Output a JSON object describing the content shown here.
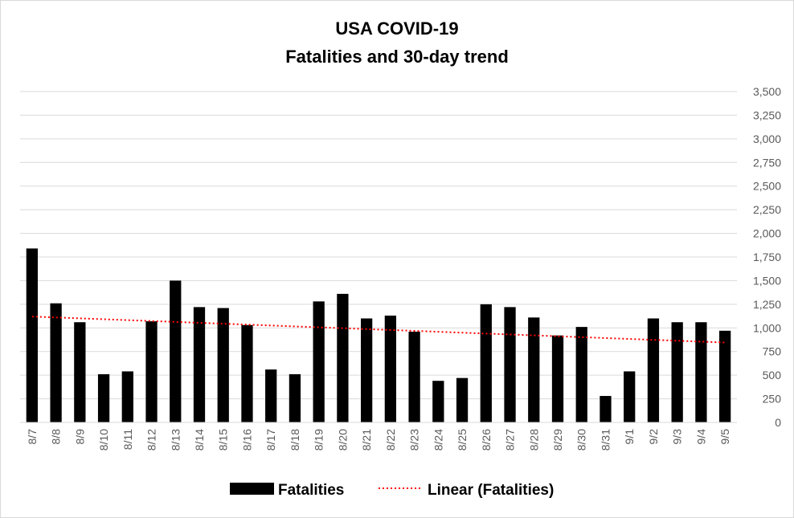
{
  "chart_data": {
    "type": "bar",
    "title": "USA COVID-19",
    "subtitle": "Fatalities and 30-day trend",
    "categories": [
      "8/7",
      "8/8",
      "8/9",
      "8/10",
      "8/11",
      "8/12",
      "8/13",
      "8/14",
      "8/15",
      "8/16",
      "8/17",
      "8/18",
      "8/19",
      "8/20",
      "8/21",
      "8/22",
      "8/23",
      "8/24",
      "8/25",
      "8/26",
      "8/27",
      "8/28",
      "8/29",
      "8/30",
      "8/31",
      "9/1",
      "9/2",
      "9/3",
      "9/4",
      "9/5"
    ],
    "series": [
      {
        "name": "Fatalities",
        "color": "#000000",
        "values": [
          1840,
          1260,
          1060,
          510,
          540,
          1070,
          1500,
          1220,
          1210,
          1030,
          560,
          510,
          1280,
          1360,
          1100,
          1130,
          960,
          440,
          470,
          1250,
          1220,
          1110,
          920,
          1010,
          280,
          540,
          1100,
          1060,
          1060,
          970
        ]
      }
    ],
    "trendline": {
      "name": "Linear (Fatalities)",
      "type": "linear",
      "color": "#ff0000",
      "start_value": 1120,
      "end_value": 845
    },
    "ylim": [
      0,
      3500
    ],
    "yticks": [
      "0",
      "250",
      "500",
      "750",
      "1,000",
      "1,250",
      "1,500",
      "1,750",
      "2,000",
      "2,250",
      "2,500",
      "2,750",
      "3,000",
      "3,250",
      "3,500"
    ],
    "y_axis_side": "right",
    "grid": true,
    "legend_position": "bottom",
    "xlabel": "",
    "ylabel": ""
  }
}
